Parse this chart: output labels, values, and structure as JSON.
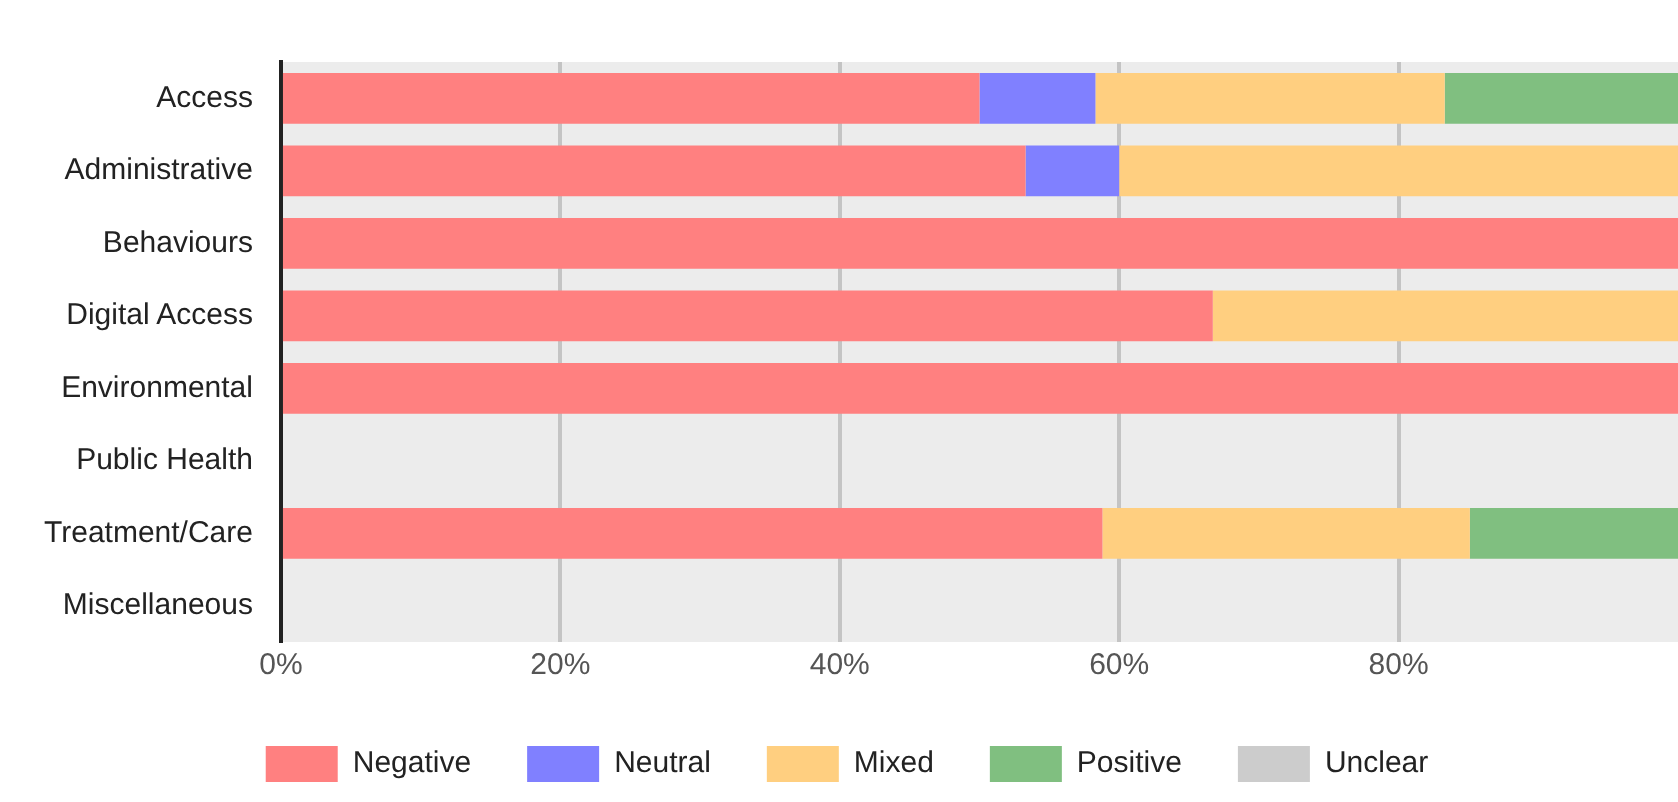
{
  "chart_data": {
    "type": "bar",
    "orientation": "horizontal",
    "stacked": true,
    "categories": [
      "Access",
      "Administrative",
      "Behaviours",
      "Digital Access",
      "Environmental",
      "Public Health",
      "Treatment/Care",
      "Miscellaneous"
    ],
    "series": [
      {
        "name": "Negative",
        "color": "#ff8080",
        "values": [
          50,
          53.3,
          100,
          66.7,
          100,
          null,
          58.8,
          null
        ]
      },
      {
        "name": "Neutral",
        "color": "#8080ff",
        "values": [
          8.3,
          6.7,
          null,
          null,
          null,
          null,
          null,
          null
        ]
      },
      {
        "name": "Mixed",
        "color": "#ffcf80",
        "values": [
          25,
          40,
          null,
          33.3,
          null,
          null,
          26.3,
          null
        ]
      },
      {
        "name": "Positive",
        "color": "#80bf80",
        "values": [
          16.7,
          null,
          null,
          null,
          null,
          null,
          14.9,
          null
        ]
      },
      {
        "name": "Unclear",
        "color": "#cccccc",
        "values": [
          null,
          null,
          null,
          null,
          null,
          null,
          null,
          null
        ]
      }
    ],
    "xlim": [
      0,
      100
    ],
    "xticks": [
      {
        "value": 0,
        "label": "0%"
      },
      {
        "value": 20,
        "label": "20%"
      },
      {
        "value": 40,
        "label": "40%"
      },
      {
        "value": 60,
        "label": "60%"
      },
      {
        "value": 80,
        "label": "80%"
      }
    ],
    "grid": "x",
    "legend": "bottom"
  }
}
